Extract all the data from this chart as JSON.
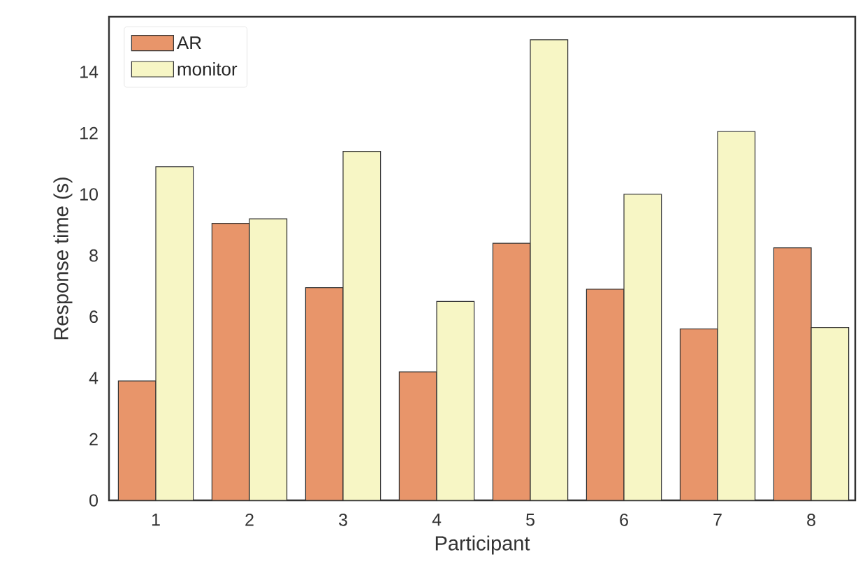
{
  "chart_data": {
    "type": "bar",
    "xlabel": "Participant",
    "ylabel": "Response time (s)",
    "categories": [
      "1",
      "2",
      "3",
      "4",
      "5",
      "6",
      "7",
      "8"
    ],
    "series": [
      {
        "name": "AR",
        "color": "#e8956a",
        "values": [
          3.9,
          9.05,
          6.95,
          4.2,
          8.4,
          6.9,
          5.6,
          8.25
        ]
      },
      {
        "name": "monitor",
        "color": "#f7f6c5",
        "values": [
          10.9,
          9.2,
          11.4,
          6.5,
          15.05,
          10.0,
          12.05,
          5.65
        ]
      }
    ],
    "ylim": [
      0,
      15.8
    ],
    "yticks": [
      0,
      2,
      4,
      6,
      8,
      10,
      12,
      14
    ],
    "legend": "top left"
  }
}
